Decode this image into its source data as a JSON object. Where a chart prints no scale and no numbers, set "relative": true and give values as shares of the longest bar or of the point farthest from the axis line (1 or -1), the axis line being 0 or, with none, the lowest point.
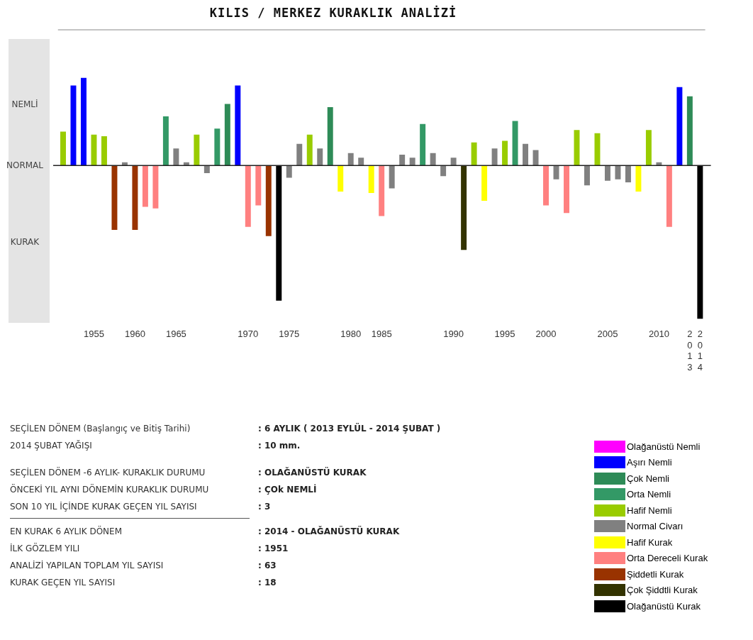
{
  "chart_data": {
    "type": "bar",
    "title": "KILIS / MERKEZ KURAKLIK ANALİZİ",
    "relative": true,
    "stacked": true,
    "legend": "bottom right",
    "categories": [
      null,
      null,
      null,
      "1955",
      null,
      null,
      null,
      "1960",
      null,
      null,
      null,
      "1965",
      null,
      null,
      null,
      null,
      null,
      null,
      "1970",
      null,
      null,
      null,
      "1975",
      null,
      null,
      null,
      null,
      null,
      "1980",
      null,
      null,
      "1985",
      null,
      null,
      null,
      null,
      null,
      null,
      "1990",
      null,
      null,
      null,
      null,
      "1995",
      null,
      null,
      null,
      "2000",
      null,
      null,
      null,
      null,
      null,
      "2005",
      null,
      null,
      null,
      null,
      "2010",
      null,
      null,
      "2013",
      "2014"
    ],
    "series": [
      {
        "name": "Olağanüstü Nemli",
        "color": "#ff00ff",
        "values": [
          null,
          null,
          null,
          null,
          null,
          null,
          null,
          null,
          null,
          null,
          null,
          null,
          null,
          null,
          null,
          null,
          null,
          null,
          null,
          null,
          null,
          null,
          null,
          null,
          null,
          null,
          null,
          null,
          null,
          null,
          null,
          null,
          null,
          null,
          null,
          null,
          null,
          null,
          null,
          null,
          null,
          null,
          null,
          null,
          null,
          null,
          null,
          null,
          null,
          null,
          null,
          null,
          null,
          null,
          null,
          null,
          null,
          null,
          null,
          null,
          null,
          null,
          null
        ]
      },
      {
        "name": "Aşırı Nemli",
        "color": "#0000ff",
        "values": [
          null,
          0.52,
          0.57,
          null,
          null,
          null,
          null,
          null,
          null,
          null,
          null,
          null,
          null,
          null,
          null,
          null,
          null,
          0.52,
          null,
          null,
          null,
          null,
          null,
          null,
          null,
          null,
          null,
          null,
          null,
          null,
          null,
          null,
          null,
          null,
          null,
          null,
          null,
          null,
          null,
          null,
          null,
          null,
          null,
          null,
          null,
          null,
          null,
          null,
          null,
          null,
          null,
          null,
          null,
          null,
          null,
          null,
          null,
          null,
          null,
          null,
          0.51,
          null,
          null
        ]
      },
      {
        "name": "Çok Nemli",
        "color": "#2e8b57",
        "values": [
          null,
          null,
          null,
          null,
          null,
          null,
          null,
          null,
          null,
          null,
          null,
          null,
          null,
          null,
          null,
          null,
          0.4,
          null,
          null,
          null,
          null,
          null,
          null,
          null,
          null,
          null,
          0.38,
          null,
          null,
          null,
          null,
          null,
          null,
          null,
          null,
          null,
          null,
          null,
          null,
          null,
          null,
          null,
          null,
          null,
          null,
          null,
          null,
          null,
          null,
          null,
          null,
          null,
          null,
          null,
          null,
          null,
          null,
          null,
          null,
          null,
          null,
          0.45,
          null
        ]
      },
      {
        "name": "Orta Nemli",
        "color": "#339966",
        "values": [
          null,
          null,
          null,
          null,
          null,
          null,
          null,
          null,
          null,
          null,
          0.32,
          null,
          null,
          null,
          null,
          0.24,
          null,
          null,
          null,
          null,
          null,
          null,
          null,
          null,
          null,
          null,
          null,
          null,
          null,
          null,
          null,
          null,
          null,
          null,
          null,
          0.27,
          null,
          null,
          null,
          null,
          null,
          null,
          null,
          null,
          0.29,
          null,
          null,
          null,
          null,
          null,
          null,
          null,
          null,
          null,
          null,
          null,
          null,
          null,
          null,
          null,
          null,
          null,
          null
        ]
      },
      {
        "name": "Hafif Nemli",
        "color": "#99cc00",
        "values": [
          0.22,
          null,
          null,
          0.2,
          0.19,
          null,
          null,
          null,
          null,
          null,
          null,
          null,
          null,
          0.2,
          null,
          null,
          null,
          null,
          null,
          null,
          null,
          null,
          null,
          null,
          0.2,
          null,
          null,
          null,
          null,
          null,
          null,
          null,
          null,
          null,
          null,
          null,
          null,
          null,
          null,
          null,
          0.15,
          null,
          null,
          0.16,
          null,
          null,
          null,
          null,
          null,
          null,
          0.23,
          null,
          0.21,
          null,
          null,
          null,
          null,
          0.23,
          null,
          null,
          null,
          null,
          null
        ]
      },
      {
        "name": "Normal Civarı",
        "color": "#808080",
        "values": [
          null,
          null,
          null,
          null,
          null,
          null,
          0.02,
          null,
          null,
          null,
          null,
          0.11,
          0.02,
          null,
          -0.05,
          null,
          null,
          null,
          null,
          null,
          null,
          null,
          -0.08,
          0.14,
          null,
          0.11,
          null,
          null,
          0.08,
          0.05,
          null,
          null,
          -0.15,
          0.07,
          0.05,
          null,
          0.08,
          -0.07,
          0.05,
          null,
          null,
          null,
          0.11,
          null,
          null,
          0.14,
          0.1,
          null,
          -0.09,
          null,
          null,
          -0.13,
          null,
          -0.1,
          -0.09,
          -0.11,
          null,
          null,
          0.02,
          null,
          null,
          null,
          null
        ]
      },
      {
        "name": "Hafif Kurak",
        "color": "#ffff00",
        "values": [
          null,
          null,
          null,
          null,
          null,
          null,
          null,
          null,
          null,
          null,
          null,
          null,
          null,
          null,
          null,
          null,
          null,
          null,
          null,
          null,
          null,
          null,
          null,
          null,
          null,
          null,
          null,
          -0.17,
          null,
          null,
          -0.18,
          null,
          null,
          null,
          null,
          null,
          null,
          null,
          null,
          null,
          null,
          -0.23,
          null,
          null,
          null,
          null,
          null,
          null,
          null,
          null,
          null,
          null,
          null,
          null,
          null,
          null,
          -0.17,
          null,
          null,
          null,
          null,
          null,
          null
        ]
      },
      {
        "name": "Orta Dereceli Kurak",
        "color": "#ff8080",
        "values": [
          null,
          null,
          null,
          null,
          null,
          null,
          null,
          null,
          -0.27,
          -0.28,
          null,
          null,
          null,
          null,
          null,
          null,
          null,
          null,
          -0.4,
          -0.26,
          null,
          null,
          null,
          null,
          null,
          null,
          null,
          null,
          null,
          null,
          null,
          -0.33,
          null,
          null,
          null,
          null,
          null,
          null,
          null,
          null,
          null,
          null,
          null,
          null,
          null,
          null,
          null,
          -0.26,
          null,
          -0.31,
          null,
          null,
          null,
          null,
          null,
          null,
          null,
          null,
          null,
          -0.4,
          null,
          null,
          null
        ]
      },
      {
        "name": "Şiddetli Kurak",
        "color": "#993300",
        "values": [
          null,
          null,
          null,
          null,
          null,
          -0.42,
          null,
          -0.42,
          null,
          null,
          null,
          null,
          null,
          null,
          null,
          null,
          null,
          null,
          null,
          null,
          -0.46,
          null,
          null,
          null,
          null,
          null,
          null,
          null,
          null,
          null,
          null,
          null,
          null,
          null,
          null,
          null,
          null,
          null,
          null,
          null,
          null,
          null,
          null,
          null,
          null,
          null,
          null,
          null,
          null,
          null,
          null,
          null,
          null,
          null,
          null,
          null,
          null,
          null,
          null,
          null,
          null,
          null,
          null
        ]
      },
      {
        "name": "Çok Şiddtli Kurak",
        "color": "#333300",
        "values": [
          null,
          null,
          null,
          null,
          null,
          null,
          null,
          null,
          null,
          null,
          null,
          null,
          null,
          null,
          null,
          null,
          null,
          null,
          null,
          null,
          null,
          null,
          null,
          null,
          null,
          null,
          null,
          null,
          null,
          null,
          null,
          null,
          null,
          null,
          null,
          null,
          null,
          null,
          null,
          -0.55,
          null,
          null,
          null,
          null,
          null,
          null,
          null,
          null,
          null,
          null,
          null,
          null,
          null,
          null,
          null,
          null,
          null,
          null,
          null,
          null,
          null,
          null,
          null
        ]
      },
      {
        "name": "Olağanüstü Kurak",
        "color": "#000000",
        "values": [
          null,
          null,
          null,
          null,
          null,
          null,
          null,
          null,
          null,
          null,
          null,
          null,
          null,
          null,
          null,
          null,
          null,
          null,
          null,
          null,
          null,
          -0.88,
          null,
          null,
          null,
          null,
          null,
          null,
          null,
          null,
          null,
          null,
          null,
          null,
          null,
          null,
          null,
          null,
          null,
          null,
          null,
          null,
          null,
          null,
          null,
          null,
          null,
          null,
          null,
          null,
          null,
          null,
          null,
          null,
          null,
          null,
          null,
          null,
          null,
          null,
          null,
          null,
          -1
        ]
      }
    ],
    "annotations": [
      "NEMLİ",
      "NORMAL",
      "KURAK",
      "SEÇİLEN DÖNEM (Başlangıç ve Bitiş Tarihi) : 6 AYLIK ( 2013 EYLÜL - 2014 ŞUBAT )",
      "2014 ŞUBAT YAĞIŞI : 10 mm.",
      "SEÇİLEN DÖNEM -6 AYLIK- KURAKLIK DURUMU : OLAĞANÜSTÜ KURAK",
      "ÖNCEKİ YIL AYNI DÖNEMİN KURAKLIK DURUMU : ÇOk NEMLİ",
      "SON 10 YIL İÇİNDE KURAK GEÇEN YIL SAYISI : 3",
      "EN KURAK 6 AYLIK DÖNEM : 2014 - OLAĞANÜSTÜ KURAK",
      "İLK GÖZLEM YILI : 1951",
      "ANALİZİ YAPILAN TOPLAM YIL SAYISI : 63",
      "KURAK GEÇEN YIL SAYISI : 18"
    ]
  }
}
